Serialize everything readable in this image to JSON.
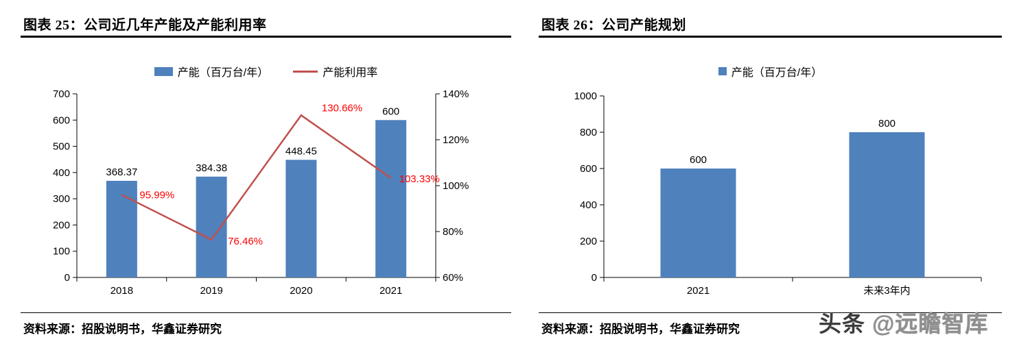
{
  "page": {
    "background": "#ffffff"
  },
  "left_panel": {
    "title": "图表 25：公司近几年产能及产能利用率",
    "source": "资料来源：招股说明书，华鑫证券研究",
    "legend": [
      {
        "type": "bar",
        "label": "产能（百万台/年）",
        "color": "#4F81BD",
        "swatch": [
          27,
          13
        ]
      },
      {
        "type": "line",
        "label": "产能利用率",
        "color": "#C0504D"
      }
    ]
  },
  "right_panel": {
    "title": "图表 26：公司产能规划",
    "source": "资料来源：招股说明书，华鑫证券研究",
    "legend": [
      {
        "type": "bar",
        "label": "产能（百万台/年）",
        "color": "#4F81BD",
        "swatch": [
          12,
          12
        ]
      }
    ]
  },
  "watermark": {
    "part1": "头条 ",
    "part2": "@远瞻智库"
  },
  "colors": {
    "bar": "#4F81BD",
    "line": "#C0504D",
    "line_label": "#FF0000",
    "axis": "#000000"
  },
  "chart_data": [
    {
      "type": "bar",
      "title": "图表 25：公司近几年产能及产能利用率",
      "categories": [
        "2018",
        "2019",
        "2020",
        "2021"
      ],
      "series": [
        {
          "name": "产能（百万台/年）",
          "type": "bar",
          "axis": "left",
          "color": "#4F81BD",
          "values": [
            368.37,
            384.38,
            448.45,
            600
          ],
          "labels": [
            "368.37",
            "384.38",
            "448.45",
            "600"
          ]
        },
        {
          "name": "产能利用率",
          "type": "line",
          "axis": "right",
          "color": "#C0504D",
          "values": [
            95.99,
            76.46,
            130.66,
            103.33
          ],
          "labels": [
            "95.99%",
            "76.46%",
            "130.66%",
            "103.33%"
          ],
          "label_color": "#FF0000"
        }
      ],
      "left_axis": {
        "min": 0,
        "max": 700,
        "step": 100,
        "suffix": ""
      },
      "right_axis": {
        "min": 60,
        "max": 140,
        "step": 20,
        "suffix": "%"
      },
      "grid": false,
      "legend_position": "top"
    },
    {
      "type": "bar",
      "title": "图表 26：公司产能规划",
      "categories": [
        "2021",
        "未来3年内"
      ],
      "series": [
        {
          "name": "产能（百万台/年）",
          "type": "bar",
          "axis": "left",
          "color": "#4F81BD",
          "values": [
            600,
            800
          ],
          "labels": [
            "600",
            "800"
          ]
        }
      ],
      "left_axis": {
        "min": 0,
        "max": 1000,
        "step": 200,
        "suffix": ""
      },
      "grid": false,
      "legend_position": "top"
    }
  ]
}
